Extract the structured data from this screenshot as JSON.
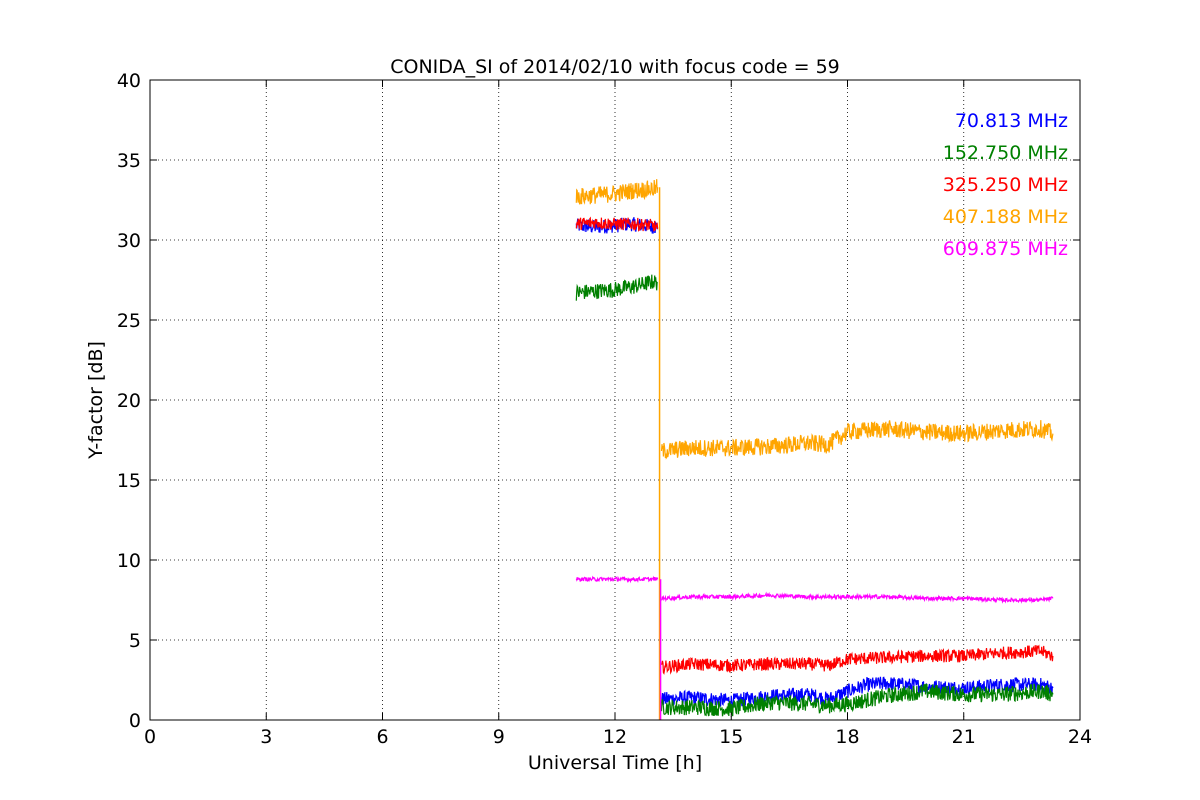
{
  "chart_data": {
    "type": "line",
    "title": "CONIDA_SI of 2014/02/10 with focus code = 59",
    "xlabel": "Universal Time [h]",
    "ylabel": "Y-factor [dB]",
    "xlim": [
      0,
      24
    ],
    "ylim": [
      0,
      40
    ],
    "xticks": [
      0,
      3,
      6,
      9,
      12,
      15,
      18,
      21,
      24
    ],
    "yticks": [
      0,
      5,
      10,
      15,
      20,
      25,
      30,
      35,
      40
    ],
    "grid": true,
    "legend_position": "top-right",
    "series": [
      {
        "name": "70.813 MHz",
        "color": "#0000ff",
        "segments": [
          [
            [
              11.0,
              30.9
            ],
            [
              11.5,
              30.8
            ],
            [
              12.0,
              30.9
            ],
            [
              12.4,
              31.0
            ],
            [
              12.8,
              30.9
            ],
            [
              13.1,
              30.8
            ]
          ],
          [
            [
              13.2,
              1.3
            ],
            [
              14.0,
              1.4
            ],
            [
              15.0,
              1.2
            ],
            [
              16.0,
              1.5
            ],
            [
              17.0,
              1.6
            ],
            [
              17.5,
              1.3
            ],
            [
              18.0,
              1.8
            ],
            [
              18.5,
              2.2
            ],
            [
              19.0,
              2.3
            ],
            [
              20.0,
              2.1
            ],
            [
              21.0,
              2.0
            ],
            [
              22.0,
              2.2
            ],
            [
              23.0,
              2.2
            ],
            [
              23.3,
              2.0
            ]
          ]
        ]
      },
      {
        "name": "152.750 MHz",
        "color": "#008000",
        "segments": [
          [
            [
              11.0,
              26.7
            ],
            [
              11.5,
              26.8
            ],
            [
              12.0,
              26.9
            ],
            [
              12.5,
              27.1
            ],
            [
              13.0,
              27.4
            ],
            [
              13.1,
              27.3
            ]
          ],
          [
            [
              13.2,
              0.8
            ],
            [
              14.0,
              0.8
            ],
            [
              15.0,
              0.7
            ],
            [
              16.0,
              1.1
            ],
            [
              17.0,
              1.0
            ],
            [
              17.5,
              0.9
            ],
            [
              18.0,
              1.0
            ],
            [
              19.0,
              1.5
            ],
            [
              20.0,
              1.8
            ],
            [
              21.0,
              1.6
            ],
            [
              22.0,
              1.6
            ],
            [
              23.0,
              1.8
            ],
            [
              23.3,
              1.6
            ]
          ]
        ]
      },
      {
        "name": "325.250 MHz",
        "color": "#ff0000",
        "segments": [
          [
            [
              11.0,
              31.0
            ],
            [
              11.5,
              31.1
            ],
            [
              12.0,
              31.0
            ],
            [
              12.5,
              31.0
            ],
            [
              13.0,
              30.9
            ],
            [
              13.1,
              30.7
            ]
          ],
          [
            [
              13.2,
              3.3
            ],
            [
              14.0,
              3.5
            ],
            [
              15.0,
              3.4
            ],
            [
              16.0,
              3.5
            ],
            [
              17.0,
              3.5
            ],
            [
              17.5,
              3.4
            ],
            [
              18.0,
              3.8
            ],
            [
              19.0,
              3.9
            ],
            [
              20.0,
              4.0
            ],
            [
              21.0,
              4.0
            ],
            [
              22.0,
              4.2
            ],
            [
              23.0,
              4.3
            ],
            [
              23.3,
              4.0
            ]
          ]
        ]
      },
      {
        "name": "407.188 MHz",
        "color": "#ffa500",
        "segments": [
          [
            [
              11.0,
              32.7
            ],
            [
              11.5,
              32.8
            ],
            [
              12.0,
              32.9
            ],
            [
              12.5,
              33.1
            ],
            [
              13.0,
              33.2
            ],
            [
              13.1,
              33.3
            ]
          ],
          [
            [
              13.2,
              16.8
            ],
            [
              14.0,
              17.0
            ],
            [
              15.0,
              17.0
            ],
            [
              16.0,
              17.1
            ],
            [
              17.0,
              17.3
            ],
            [
              17.5,
              17.2
            ],
            [
              18.0,
              18.0
            ],
            [
              19.0,
              18.2
            ],
            [
              20.0,
              18.0
            ],
            [
              21.0,
              17.9
            ],
            [
              22.0,
              18.1
            ],
            [
              23.0,
              18.2
            ],
            [
              23.3,
              17.9
            ]
          ]
        ]
      },
      {
        "name": "609.875 MHz",
        "color": "#ff00ff",
        "segments": [
          [
            [
              11.0,
              8.8
            ],
            [
              12.0,
              8.8
            ],
            [
              13.0,
              8.8
            ],
            [
              13.1,
              8.8
            ]
          ],
          [
            [
              13.2,
              7.6
            ],
            [
              14.0,
              7.7
            ],
            [
              15.0,
              7.7
            ],
            [
              16.0,
              7.8
            ],
            [
              17.0,
              7.7
            ],
            [
              18.0,
              7.7
            ],
            [
              19.0,
              7.7
            ],
            [
              20.0,
              7.6
            ],
            [
              21.0,
              7.6
            ],
            [
              22.0,
              7.5
            ],
            [
              23.0,
              7.5
            ],
            [
              23.3,
              7.6
            ]
          ]
        ]
      }
    ],
    "drop_line": {
      "x": 13.15,
      "color": "#ffa500",
      "y_from": 33.3,
      "y_to": 0
    }
  }
}
